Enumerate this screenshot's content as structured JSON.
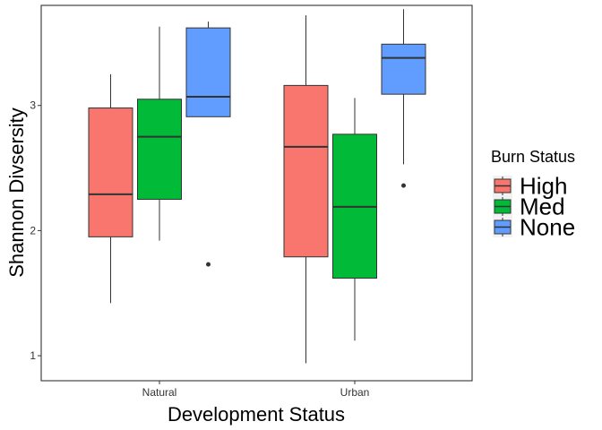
{
  "chart_data": {
    "type": "boxplot",
    "title": "",
    "xlabel": "Development Status",
    "ylabel": "Shannon Divsersity",
    "categories": [
      "Natural",
      "Urban"
    ],
    "ylim": [
      0.8,
      3.8
    ],
    "yticks": [
      1,
      2,
      3
    ],
    "grid": false,
    "legend": {
      "title": "Burn Status",
      "position": "right",
      "entries": [
        {
          "label": "High",
          "color": "#F8766D"
        },
        {
          "label": "Med",
          "color": "#00BA38"
        },
        {
          "label": "None",
          "color": "#619CFF"
        }
      ]
    },
    "series": [
      {
        "name": "High",
        "color": "#F8766D",
        "boxes": [
          {
            "category": "Natural",
            "whisker_low": 1.42,
            "q1": 1.95,
            "median": 2.29,
            "q3": 2.98,
            "whisker_high": 3.25,
            "outliers": []
          },
          {
            "category": "Urban",
            "whisker_low": 0.94,
            "q1": 1.79,
            "median": 2.67,
            "q3": 3.16,
            "whisker_high": 3.72,
            "outliers": []
          }
        ]
      },
      {
        "name": "Med",
        "color": "#00BA38",
        "boxes": [
          {
            "category": "Natural",
            "whisker_low": 1.92,
            "q1": 2.25,
            "median": 2.75,
            "q3": 3.05,
            "whisker_high": 3.63,
            "outliers": []
          },
          {
            "category": "Urban",
            "whisker_low": 1.12,
            "q1": 1.62,
            "median": 2.19,
            "q3": 2.77,
            "whisker_high": 3.06,
            "outliers": []
          }
        ]
      },
      {
        "name": "None",
        "color": "#619CFF",
        "boxes": [
          {
            "category": "Natural",
            "whisker_low": 2.91,
            "q1": 2.91,
            "median": 3.07,
            "q3": 3.62,
            "whisker_high": 3.67,
            "outliers": [
              1.73
            ]
          },
          {
            "category": "Urban",
            "whisker_low": 2.53,
            "q1": 3.09,
            "median": 3.38,
            "q3": 3.49,
            "whisker_high": 3.77,
            "outliers": [
              2.36
            ]
          }
        ]
      }
    ]
  }
}
